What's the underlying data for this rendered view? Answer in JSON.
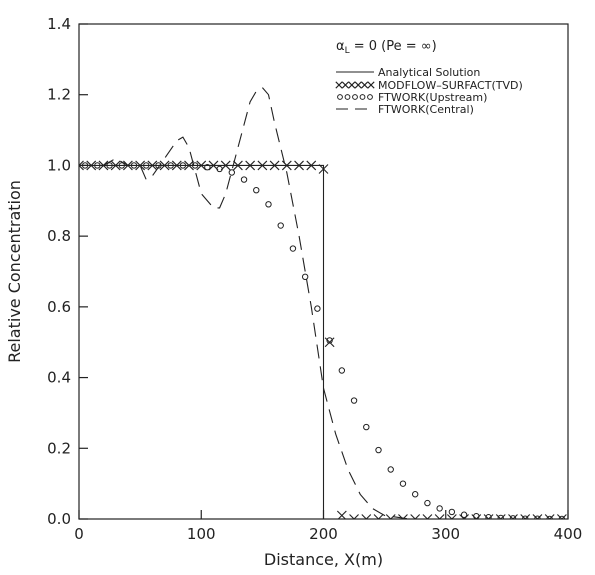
{
  "chart_data": {
    "type": "line",
    "title": "",
    "xlabel": "Distance, X(m)",
    "ylabel": "Relative Concentration",
    "xlim": [
      0,
      400
    ],
    "ylim": [
      0,
      1.4
    ],
    "xticks": [
      0,
      100,
      200,
      300,
      400
    ],
    "yticks": [
      0.0,
      0.2,
      0.4,
      0.6,
      0.8,
      1.0,
      1.2,
      1.4
    ],
    "ytick_labels": [
      "0.0",
      "0.2",
      "0.4",
      "0.6",
      "0.8",
      "1.0",
      "1.2",
      "1.4"
    ],
    "grid": false,
    "legend_placement": "top-right",
    "annotation": {
      "alpha": "α",
      "subscript": "L",
      "rest": " = 0 (Pe = ∞)"
    },
    "series": [
      {
        "name": "Analytical Solution",
        "style": "solid",
        "x": [
          0,
          200,
          200,
          400
        ],
        "y": [
          1.0,
          1.0,
          0.0,
          0.0
        ]
      },
      {
        "name": "MODFLOW–SURFACT(TVD)",
        "style": "cross-markers",
        "x": [
          0,
          10,
          20,
          30,
          40,
          50,
          60,
          70,
          80,
          90,
          100,
          110,
          120,
          130,
          140,
          150,
          160,
          170,
          180,
          190,
          200,
          205,
          215,
          225,
          235,
          245,
          255,
          265,
          275,
          285,
          295,
          305,
          315,
          325,
          335,
          345,
          355,
          365,
          375,
          385,
          395
        ],
        "y": [
          1.0,
          1.0,
          1.0,
          1.0,
          1.0,
          1.0,
          1.0,
          1.0,
          1.0,
          1.0,
          1.0,
          1.0,
          1.0,
          1.0,
          1.0,
          1.0,
          1.0,
          1.0,
          1.0,
          1.0,
          0.99,
          0.5,
          0.01,
          0.0,
          0.0,
          0.0,
          0.0,
          0.0,
          0.0,
          0.0,
          0.0,
          0.0,
          0.0,
          0.0,
          0.0,
          0.0,
          0.0,
          0.0,
          0.0,
          0.0,
          0.0
        ]
      },
      {
        "name": "FTWORK(Upstream)",
        "style": "circle-markers",
        "x": [
          5,
          15,
          25,
          35,
          45,
          55,
          65,
          75,
          85,
          95,
          105,
          115,
          125,
          135,
          145,
          155,
          165,
          175,
          185,
          195,
          205,
          215,
          225,
          235,
          245,
          255,
          265,
          275,
          285,
          295,
          305,
          315,
          325,
          335,
          345,
          355,
          365,
          375,
          385,
          395
        ],
        "y": [
          1.0,
          1.0,
          1.0,
          1.0,
          1.0,
          1.0,
          1.0,
          1.0,
          1.0,
          1.0,
          0.995,
          0.99,
          0.98,
          0.96,
          0.93,
          0.89,
          0.83,
          0.765,
          0.685,
          0.595,
          0.505,
          0.42,
          0.335,
          0.26,
          0.195,
          0.14,
          0.1,
          0.07,
          0.045,
          0.03,
          0.02,
          0.012,
          0.008,
          0.005,
          0.003,
          0.002,
          0.001,
          0.001,
          0.0,
          0.0
        ]
      },
      {
        "name": "FTWORK(Central)",
        "style": "dashed",
        "x": [
          0,
          10,
          20,
          30,
          40,
          50,
          55,
          60,
          70,
          80,
          85,
          90,
          100,
          110,
          115,
          120,
          130,
          140,
          145,
          150,
          155,
          160,
          170,
          180,
          190,
          200,
          210,
          220,
          230,
          240,
          250,
          260,
          270,
          280,
          300,
          400
        ],
        "y": [
          1.0,
          1.0,
          1.0,
          1.02,
          1.0,
          1.0,
          0.96,
          0.97,
          1.02,
          1.07,
          1.08,
          1.05,
          0.92,
          0.88,
          0.88,
          0.92,
          1.05,
          1.18,
          1.21,
          1.22,
          1.2,
          1.12,
          0.98,
          0.8,
          0.6,
          0.37,
          0.24,
          0.14,
          0.07,
          0.03,
          0.01,
          0.005,
          0.0,
          0.0,
          0.0,
          0.0
        ]
      }
    ]
  }
}
